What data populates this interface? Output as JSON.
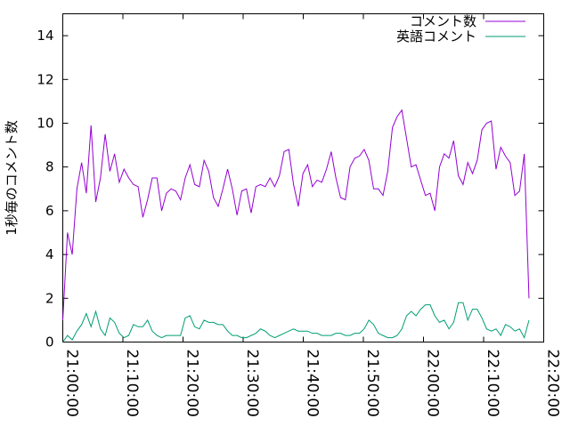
{
  "chart_data": {
    "type": "line",
    "ylabel": "1秒毎のコメント数",
    "x": [
      "21:00:00",
      "21:00:47",
      "21:01:34",
      "21:02:21",
      "21:03:08",
      "21:03:55",
      "21:04:42",
      "21:05:29",
      "21:06:16",
      "21:07:03",
      "21:07:50",
      "21:08:37",
      "21:09:24",
      "21:10:11",
      "21:10:58",
      "21:11:45",
      "21:12:32",
      "21:13:19",
      "21:14:06",
      "21:14:53",
      "21:15:40",
      "21:16:27",
      "21:17:14",
      "21:18:01",
      "21:18:48",
      "21:19:35",
      "21:20:22",
      "21:21:09",
      "21:21:56",
      "21:22:43",
      "21:23:30",
      "21:24:17",
      "21:25:04",
      "21:25:51",
      "21:26:38",
      "21:27:25",
      "21:28:12",
      "21:28:59",
      "21:29:46",
      "21:30:33",
      "21:31:20",
      "21:32:07",
      "21:32:54",
      "21:33:41",
      "21:34:28",
      "21:35:15",
      "21:36:02",
      "21:36:49",
      "21:37:36",
      "21:38:23",
      "21:39:10",
      "21:39:57",
      "21:40:44",
      "21:41:31",
      "21:42:18",
      "21:43:05",
      "21:43:52",
      "21:44:39",
      "21:45:26",
      "21:46:13",
      "21:47:00",
      "21:47:47",
      "21:48:34",
      "21:49:21",
      "21:50:08",
      "21:50:55",
      "21:51:42",
      "21:52:29",
      "21:53:16",
      "21:54:03",
      "21:54:50",
      "21:55:37",
      "21:56:24",
      "21:57:11",
      "21:57:58",
      "21:58:45",
      "21:59:32",
      "22:00:19",
      "22:01:06",
      "22:01:53",
      "22:02:40",
      "22:03:27",
      "22:04:14",
      "22:05:01",
      "22:05:48",
      "22:06:35",
      "22:07:22",
      "22:08:09",
      "22:08:56",
      "22:09:43",
      "22:10:30",
      "22:11:17",
      "22:12:04",
      "22:12:51",
      "22:13:38",
      "22:14:25",
      "22:15:12",
      "22:15:59",
      "22:16:46",
      "22:17:33"
    ],
    "series": [
      {
        "name": "コメント数",
        "color": "#9400d3",
        "values": [
          1.0,
          5.0,
          4.0,
          7.0,
          8.2,
          6.8,
          9.9,
          6.4,
          7.5,
          9.5,
          7.8,
          8.6,
          7.3,
          7.9,
          7.5,
          7.2,
          7.1,
          5.7,
          6.5,
          7.5,
          7.5,
          6.0,
          6.8,
          7.0,
          6.9,
          6.5,
          7.5,
          8.1,
          7.2,
          7.1,
          8.3,
          7.8,
          6.6,
          6.2,
          7.0,
          7.9,
          7.0,
          5.8,
          6.9,
          7.0,
          5.9,
          7.1,
          7.2,
          7.1,
          7.5,
          7.1,
          7.6,
          8.7,
          8.8,
          7.2,
          6.2,
          7.7,
          8.1,
          7.1,
          7.4,
          7.3,
          7.9,
          8.7,
          7.5,
          6.6,
          6.5,
          8.0,
          8.4,
          8.5,
          8.8,
          8.3,
          7.0,
          7.0,
          6.7,
          7.8,
          9.8,
          10.3,
          10.6,
          9.3,
          8.0,
          8.1,
          7.4,
          6.7,
          6.8,
          6.0,
          8.0,
          8.6,
          8.4,
          9.2,
          7.6,
          7.2,
          8.2,
          7.7,
          8.3,
          9.7,
          10.0,
          10.1,
          7.9,
          8.9,
          8.5,
          8.2,
          6.7,
          6.9,
          8.6,
          2.0
        ]
      },
      {
        "name": "英語コメント",
        "color": "#009e73",
        "values": [
          0,
          0.3,
          0.1,
          0.5,
          0.8,
          1.3,
          0.7,
          1.4,
          0.6,
          0.3,
          1.1,
          0.9,
          0.4,
          0.2,
          0.3,
          0.8,
          0.7,
          0.7,
          1.0,
          0.5,
          0.3,
          0.2,
          0.3,
          0.3,
          0.3,
          0.3,
          1.1,
          1.2,
          0.7,
          0.6,
          1.0,
          0.9,
          0.9,
          0.8,
          0.8,
          0.5,
          0.3,
          0.3,
          0.2,
          0.2,
          0.3,
          0.4,
          0.6,
          0.5,
          0.3,
          0.2,
          0.3,
          0.4,
          0.5,
          0.6,
          0.5,
          0.5,
          0.5,
          0.4,
          0.4,
          0.3,
          0.3,
          0.3,
          0.4,
          0.4,
          0.3,
          0.3,
          0.4,
          0.4,
          0.6,
          1.0,
          0.8,
          0.4,
          0.3,
          0.2,
          0.2,
          0.3,
          0.6,
          1.2,
          1.4,
          1.2,
          1.5,
          1.7,
          1.7,
          1.2,
          0.9,
          1.0,
          0.6,
          0.9,
          1.8,
          1.8,
          1.0,
          1.5,
          1.5,
          1.1,
          0.6,
          0.5,
          0.6,
          0.3,
          0.8,
          0.7,
          0.5,
          0.6,
          0.2,
          1.0
        ]
      }
    ],
    "xlim": [
      "21:00:00",
      "22:20:00"
    ],
    "xticks": [
      "21:00:00",
      "21:10:00",
      "21:20:00",
      "21:30:00",
      "21:40:00",
      "21:50:00",
      "22:00:00",
      "22:10:00",
      "22:20:00"
    ],
    "ylim": [
      0,
      15
    ],
    "yticks": [
      0,
      2,
      4,
      6,
      8,
      10,
      12,
      14
    ],
    "grid": false,
    "legend": "top-right"
  }
}
